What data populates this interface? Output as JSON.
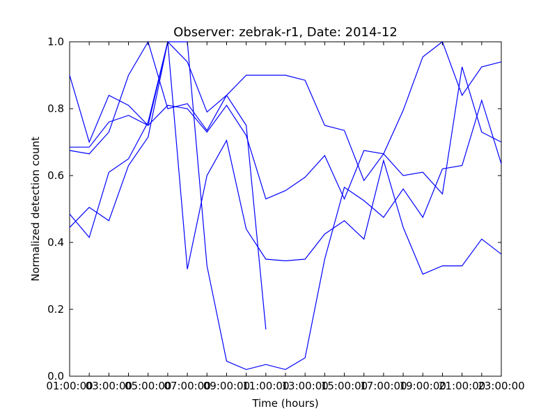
{
  "chart_data": {
    "type": "line",
    "title": "Observer: zebrak-r1, Date: 2014-12",
    "xlabel": "Time (hours)",
    "ylabel": "Normalized detection count",
    "x_tick_labels": [
      "01:00:00",
      "03:00:00",
      "05:00:00",
      "07:00:00",
      "09:00:00",
      "11:00:00",
      "13:00:00",
      "15:00:00",
      "17:00:00",
      "19:00:00",
      "21:00:00",
      "23:00:00"
    ],
    "x_tick_labels_top": [
      "",
      "",
      "",
      "",
      "",
      "",
      "",
      "",
      "",
      "",
      "",
      ""
    ],
    "x_tick_labels_overlap": [
      "03",
      "05",
      "07",
      "09",
      "11",
      "13",
      "15",
      "17",
      "19",
      "21",
      "23",
      ""
    ],
    "y_ticks": [
      "0.0",
      "0.2",
      "0.4",
      "0.6",
      "0.8",
      "1.0"
    ],
    "xlim": [
      1,
      23
    ],
    "ylim": [
      0,
      1
    ],
    "grid": false,
    "line_color": "#0000ff",
    "series": [
      {
        "x": [
          1,
          2,
          3,
          4,
          5,
          6,
          7,
          8,
          9,
          10,
          11,
          12,
          13,
          14,
          15,
          16,
          17,
          18,
          19,
          20,
          21,
          22,
          23
        ],
        "y": [
          0.9,
          0.7,
          0.84,
          0.81,
          0.75,
          1.0,
          0.94,
          0.79,
          0.84,
          0.75,
          0.14,
          null,
          null,
          null,
          null,
          null,
          null,
          null,
          null,
          null,
          null,
          null,
          null
        ]
      },
      {
        "x": [
          1,
          2,
          3,
          4,
          5,
          6,
          7,
          8,
          9,
          10,
          11,
          12,
          13,
          14,
          15,
          16,
          17,
          18,
          19,
          20,
          21,
          22,
          23
        ],
        "y": [
          0.685,
          0.685,
          0.76,
          0.78,
          0.75,
          0.81,
          0.8,
          0.73,
          0.81,
          0.72,
          0.53,
          0.555,
          0.595,
          0.66,
          0.53,
          0.675,
          0.665,
          0.6,
          0.61,
          0.545,
          0.925,
          0.73,
          0.7
        ]
      },
      {
        "x": [
          1,
          2,
          3,
          4,
          5,
          6,
          7,
          8,
          9,
          10,
          11,
          12,
          13,
          14,
          15,
          16,
          17,
          18,
          19,
          20,
          21,
          22,
          23
        ],
        "y": [
          0.675,
          0.665,
          0.73,
          0.9,
          1.0,
          0.8,
          0.815,
          0.735,
          0.84,
          0.9,
          0.9,
          0.9,
          0.885,
          0.75,
          0.735,
          0.585,
          0.665,
          0.795,
          0.955,
          1.0,
          0.84,
          0.925,
          0.94
        ]
      },
      {
        "x": [
          1,
          2,
          3,
          4,
          5,
          6,
          7,
          8,
          9,
          10,
          11,
          12,
          13,
          14,
          15,
          16,
          17,
          18,
          19,
          20,
          21,
          22,
          23
        ],
        "y": [
          0.485,
          0.415,
          0.61,
          0.65,
          0.76,
          1.0,
          0.32,
          0.6,
          0.705,
          0.44,
          0.35,
          0.345,
          0.35,
          0.425,
          0.465,
          0.41,
          0.645,
          0.445,
          0.305,
          0.33,
          0.33,
          0.41,
          0.365
        ]
      },
      {
        "x": [
          1,
          2,
          3,
          4,
          5,
          6,
          7,
          8,
          9,
          10,
          11,
          12,
          13,
          14,
          15,
          16,
          17,
          18,
          19,
          20,
          21,
          22,
          23
        ],
        "y": [
          0.445,
          0.505,
          0.465,
          0.63,
          0.715,
          1.0,
          1.0,
          0.33,
          0.045,
          0.02,
          0.035,
          0.02,
          0.055,
          0.35,
          0.565,
          0.525,
          0.475,
          0.56,
          0.475,
          0.62,
          0.63,
          0.825,
          0.635
        ]
      }
    ]
  }
}
